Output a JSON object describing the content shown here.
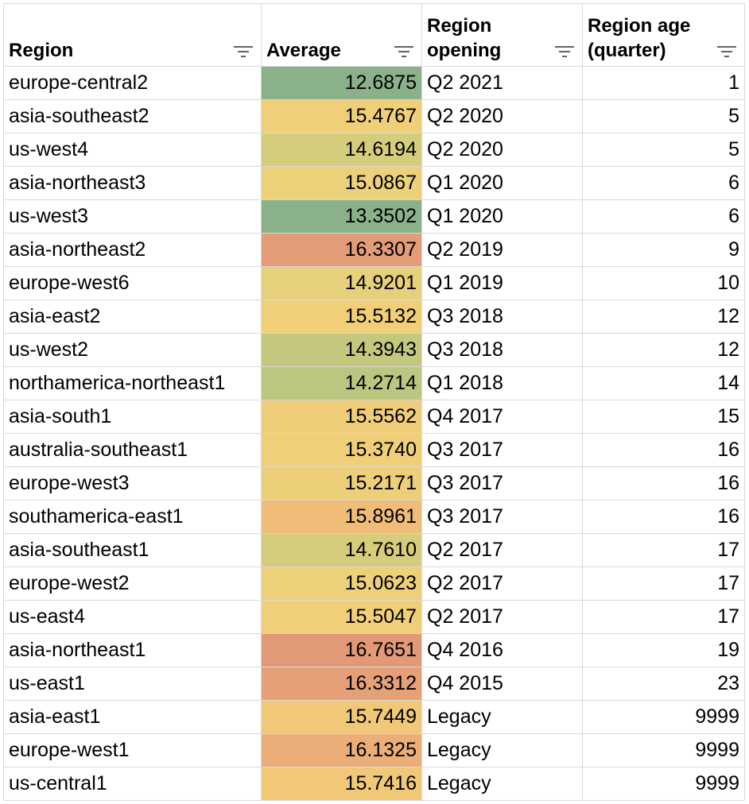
{
  "columns": [
    {
      "label_line1": "Region",
      "label_line2": ""
    },
    {
      "label_line1": "Average",
      "label_line2": ""
    },
    {
      "label_line1": "Region",
      "label_line2": "opening"
    },
    {
      "label_line1": "Region age",
      "label_line2": "(quarter)"
    }
  ],
  "filter_icon": "filter-icon",
  "rows": [
    {
      "region": "europe-central2",
      "average": "12.6875",
      "opening": "Q2 2021",
      "age": "1",
      "color": "#8ab18a"
    },
    {
      "region": "asia-southeast2",
      "average": "15.4767",
      "opening": "Q2 2020",
      "age": "5",
      "color": "#f0cf78"
    },
    {
      "region": "us-west4",
      "average": "14.6194",
      "opening": "Q2 2020",
      "age": "5",
      "color": "#d3cd7c"
    },
    {
      "region": "asia-northeast3",
      "average": "15.0867",
      "opening": "Q1 2020",
      "age": "6",
      "color": "#ecd07a"
    },
    {
      "region": "us-west3",
      "average": "13.3502",
      "opening": "Q1 2020",
      "age": "6",
      "color": "#8ab18a"
    },
    {
      "region": "asia-northeast2",
      "average": "16.3307",
      "opening": "Q2 2019",
      "age": "9",
      "color": "#e49b78"
    },
    {
      "region": "europe-west6",
      "average": "14.9201",
      "opening": "Q1 2019",
      "age": "10",
      "color": "#e6d07c"
    },
    {
      "region": "asia-east2",
      "average": "15.5132",
      "opening": "Q3 2018",
      "age": "12",
      "color": "#f0cf78"
    },
    {
      "region": "us-west2",
      "average": "14.3943",
      "opening": "Q3 2018",
      "age": "12",
      "color": "#c4c87e"
    },
    {
      "region": "northamerica-northeast1",
      "average": "14.2714",
      "opening": "Q1 2018",
      "age": "14",
      "color": "#bdc680"
    },
    {
      "region": "asia-south1",
      "average": "15.5562",
      "opening": "Q4 2017",
      "age": "15",
      "color": "#f0cd78"
    },
    {
      "region": "australia-southeast1",
      "average": "15.3740",
      "opening": "Q3 2017",
      "age": "16",
      "color": "#f0cf78"
    },
    {
      "region": "europe-west3",
      "average": "15.2171",
      "opening": "Q3 2017",
      "age": "16",
      "color": "#eecf79"
    },
    {
      "region": "southamerica-east1",
      "average": "15.8961",
      "opening": "Q3 2017",
      "age": "16",
      "color": "#efbd78"
    },
    {
      "region": "asia-southeast1",
      "average": "14.7610",
      "opening": "Q2 2017",
      "age": "17",
      "color": "#d6cd7c"
    },
    {
      "region": "europe-west2",
      "average": "15.0623",
      "opening": "Q2 2017",
      "age": "17",
      "color": "#ecd07a"
    },
    {
      "region": "us-east4",
      "average": "15.5047",
      "opening": "Q2 2017",
      "age": "17",
      "color": "#f0cf78"
    },
    {
      "region": "asia-northeast1",
      "average": "16.7651",
      "opening": "Q4 2016",
      "age": "19",
      "color": "#e29977"
    },
    {
      "region": "us-east1",
      "average": "16.3312",
      "opening": "Q4 2015",
      "age": "23",
      "color": "#e6a078"
    },
    {
      "region": "asia-east1",
      "average": "15.7449",
      "opening": "Legacy",
      "age": "9999",
      "color": "#f0c878"
    },
    {
      "region": "europe-west1",
      "average": "16.1325",
      "opening": "Legacy",
      "age": "9999",
      "color": "#ebae78"
    },
    {
      "region": "us-central1",
      "average": "15.7416",
      "opening": "Legacy",
      "age": "9999",
      "color": "#f0c878"
    }
  ]
}
